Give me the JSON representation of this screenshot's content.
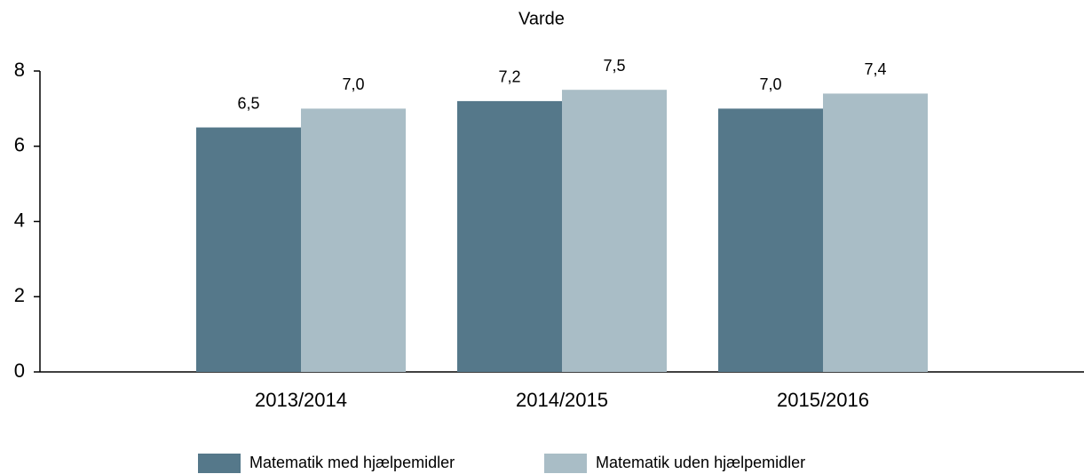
{
  "chart_data": {
    "type": "bar",
    "title": "Varde",
    "categories": [
      "2013/2014",
      "2014/2015",
      "2015/2016"
    ],
    "series": [
      {
        "name": "Matematik med hjælpemidler",
        "color": "#55788a",
        "values": [
          6.5,
          7.2,
          7.0
        ],
        "value_labels": [
          "6,5",
          "7,2",
          "7,0"
        ]
      },
      {
        "name": "Matematik uden hjælpemidler",
        "color": "#a9bdc6",
        "values": [
          7.0,
          7.5,
          7.4
        ],
        "value_labels": [
          "7,0",
          "7,5",
          "7,4"
        ]
      }
    ],
    "ylim": [
      0,
      8
    ],
    "yticks": [
      0,
      2,
      4,
      6,
      8
    ],
    "grid": false,
    "legend": "bottom"
  }
}
